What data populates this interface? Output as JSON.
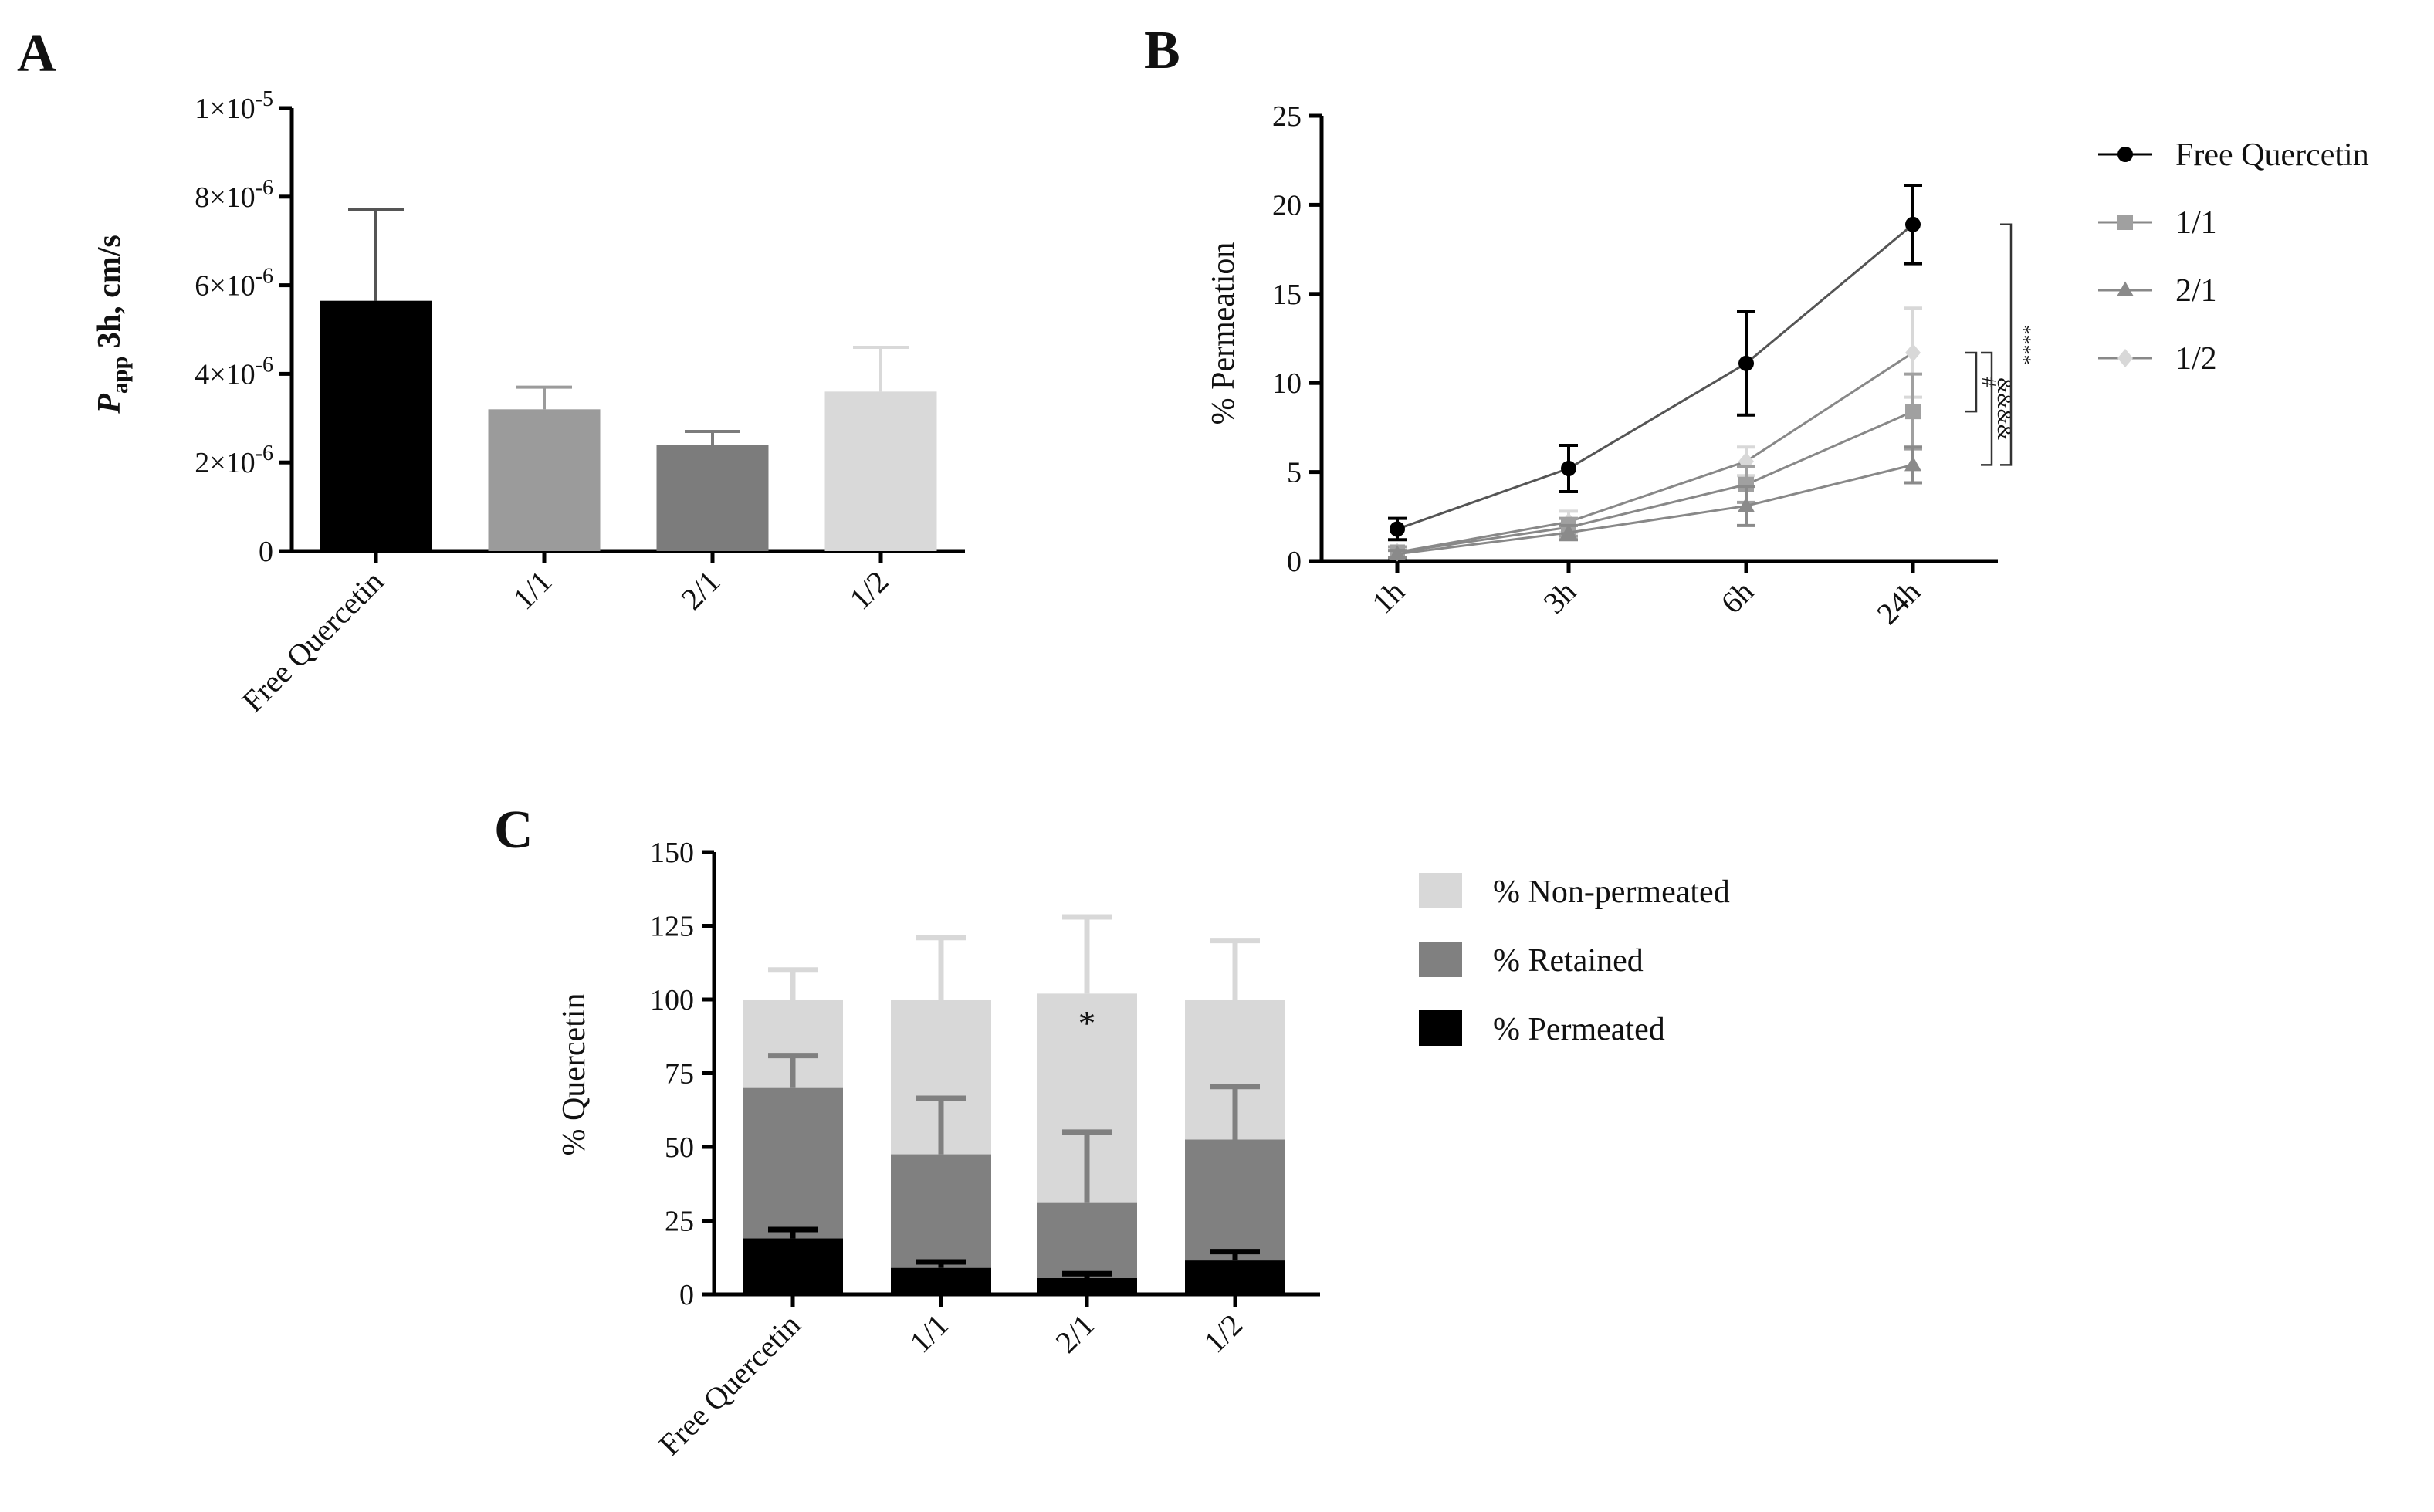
{
  "panels": {
    "A": {
      "letter": "A"
    },
    "B": {
      "letter": "B"
    },
    "C": {
      "letter": "C"
    }
  },
  "chart_data": [
    {
      "id": "A",
      "type": "bar",
      "ylabel_main": "P",
      "ylabel_sub": "app",
      "ylabel_rest": " 3h, cm/s",
      "categories": [
        "Free Quercetin",
        "1/1",
        "2/1",
        "1/2"
      ],
      "values": [
        5.65e-06,
        3.2e-06,
        2.4e-06,
        3.6e-06
      ],
      "errors": [
        2.05e-06,
        5e-07,
        3e-07,
        1e-06
      ],
      "colors": [
        "#000000",
        "#9b9b9b",
        "#7c7c7c",
        "#d9d9d9"
      ],
      "ylim": [
        0,
        1e-05
      ],
      "yticks": [
        {
          "value": 0,
          "label": "0"
        },
        {
          "value": 2e-06,
          "mant": "2×10",
          "exp": "-6"
        },
        {
          "value": 4e-06,
          "mant": "4×10",
          "exp": "-6"
        },
        {
          "value": 6e-06,
          "mant": "6×10",
          "exp": "-6"
        },
        {
          "value": 8e-06,
          "mant": "8×10",
          "exp": "-6"
        },
        {
          "value": 1e-05,
          "mant": "1×10",
          "exp": "-5"
        }
      ]
    },
    {
      "id": "B",
      "type": "line",
      "ylabel": "% Permeation",
      "categories": [
        "1h",
        "3h",
        "6h",
        "24h"
      ],
      "ylim": [
        0,
        25
      ],
      "yticks": [
        0,
        5,
        10,
        15,
        20,
        25
      ],
      "series": [
        {
          "name": "Free Quercetin",
          "marker": "circle",
          "color": "#000000",
          "values": [
            1.8,
            5.2,
            11.1,
            18.9
          ],
          "errors": [
            0.6,
            1.3,
            2.9,
            2.2
          ]
        },
        {
          "name": "1/1",
          "marker": "square",
          "color": "#a0a0a0",
          "values": [
            0.5,
            1.9,
            4.3,
            8.4
          ],
          "errors": [
            0.3,
            0.5,
            1.0,
            2.1
          ]
        },
        {
          "name": "2/1",
          "marker": "triangle",
          "color": "#8a8a8a",
          "values": [
            0.4,
            1.6,
            3.1,
            5.4
          ],
          "errors": [
            0.2,
            0.4,
            1.1,
            1.0
          ]
        },
        {
          "name": "1/2",
          "marker": "diamond",
          "color": "#d8d8d8",
          "values": [
            0.5,
            2.2,
            5.6,
            11.7
          ],
          "errors": [
            0.3,
            0.6,
            0.8,
            2.5
          ]
        }
      ],
      "annotations": [
        {
          "text": "#",
          "between": [
            "1/2",
            "1/1"
          ]
        },
        {
          "text": "&&&&",
          "between": [
            "1/2",
            "2/1"
          ]
        },
        {
          "text": "****",
          "between": [
            "Free Quercetin",
            "2/1"
          ]
        }
      ]
    },
    {
      "id": "C",
      "type": "bar",
      "stacked": true,
      "ylabel": "% Quercetin",
      "categories": [
        "Free Quercetin",
        "1/1",
        "2/1",
        "1/2"
      ],
      "ylim": [
        0,
        150
      ],
      "yticks": [
        0,
        25,
        50,
        75,
        100,
        125,
        150
      ],
      "series": [
        {
          "name": "% Permeated",
          "color": "#000000",
          "values": [
            19,
            9,
            5.5,
            11.5
          ],
          "errors": [
            3,
            2,
            1.5,
            3
          ]
        },
        {
          "name": "% Retained",
          "color": "#808080",
          "values": [
            51,
            38.5,
            25.5,
            41
          ],
          "errors": [
            11,
            19,
            24,
            18
          ]
        },
        {
          "name": "% Non-permeated",
          "color": "#d8d8d8",
          "values": [
            30,
            52.5,
            71,
            47.5
          ],
          "errors": [
            10,
            21,
            26,
            20
          ]
        }
      ],
      "legend_order": [
        "% Non-permeated",
        "% Retained",
        "% Permeated"
      ],
      "annotations": [
        {
          "text": "*",
          "category": "2/1"
        }
      ]
    }
  ]
}
